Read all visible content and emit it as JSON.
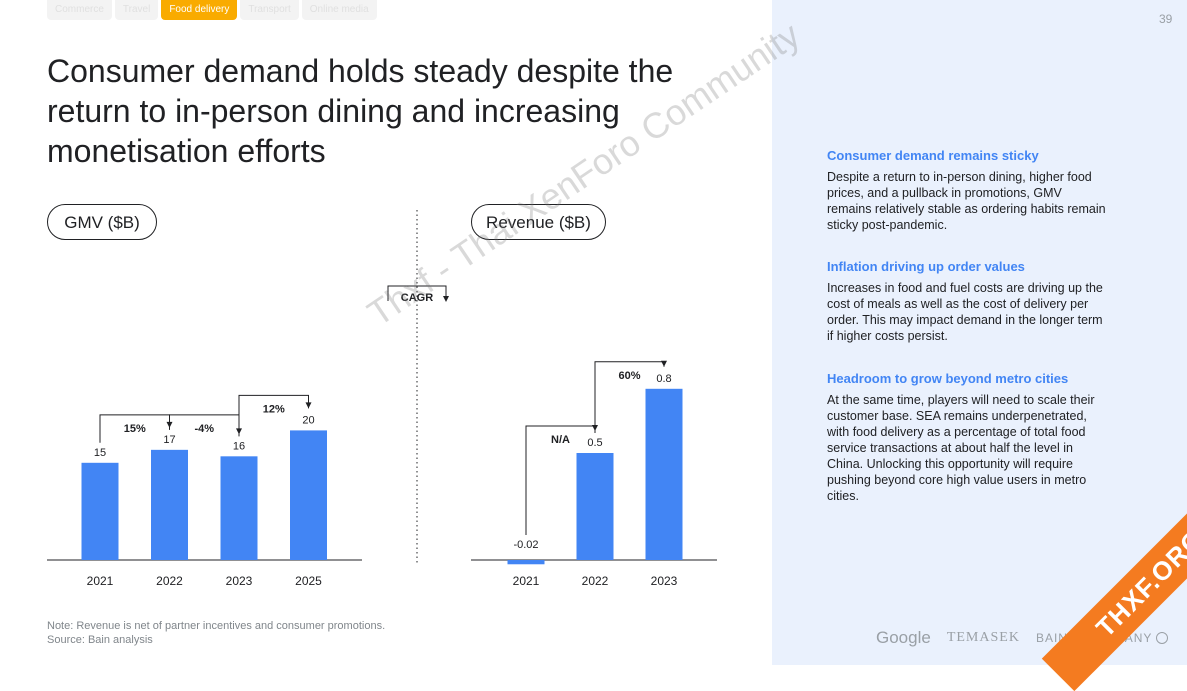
{
  "tabs": [
    {
      "label": "Commerce",
      "active": false
    },
    {
      "label": "Travel",
      "active": false
    },
    {
      "label": "Food delivery",
      "active": true
    },
    {
      "label": "Transport",
      "active": false
    },
    {
      "label": "Online media",
      "active": false
    }
  ],
  "page_number": "39",
  "title": "Consumer demand holds steady despite the return to in-person dining and increasing monetisation efforts",
  "cagr_label": "CAGR",
  "colors": {
    "bar": "#4285f4",
    "accent": "#f9ab00",
    "panel": "#eaf1fd",
    "heading": "#4285f4"
  },
  "chart_data": [
    {
      "type": "bar",
      "title": "GMV ($B)",
      "categories": [
        "2021",
        "2022",
        "2023",
        "2025"
      ],
      "values": [
        15,
        17,
        16,
        20
      ],
      "value_labels": [
        "15",
        "17",
        "16",
        "20"
      ],
      "growth_annotations": [
        {
          "from": "2021",
          "to": "2022",
          "label": "15%"
        },
        {
          "from": "2022",
          "to": "2023",
          "label": "-4%"
        },
        {
          "from": "2023",
          "to": "2025",
          "label": "12%"
        }
      ],
      "ylim": [
        0,
        25
      ]
    },
    {
      "type": "bar",
      "title": "Revenue ($B)",
      "categories": [
        "2021",
        "2022",
        "2023"
      ],
      "values": [
        -0.02,
        0.5,
        0.8
      ],
      "value_labels": [
        "-0.02",
        "0.5",
        "0.8"
      ],
      "growth_annotations": [
        {
          "from": "2021",
          "to": "2022",
          "label": "N/A"
        },
        {
          "from": "2022",
          "to": "2023",
          "label": "60%"
        }
      ],
      "ylim": [
        0,
        1.0
      ]
    }
  ],
  "sidebar": [
    {
      "heading": "Consumer demand remains sticky",
      "body": "Despite a return to in-person dining, higher food prices, and a pullback in promotions, GMV remains relatively stable as ordering habits remain sticky post-pandemic."
    },
    {
      "heading": "Inflation driving up order values",
      "body": "Increases in food and fuel costs are driving up the cost of meals as well as the cost of delivery per order. This may impact demand in the longer term if higher costs persist."
    },
    {
      "heading": "Headroom to grow beyond metro cities",
      "body": "At the same time, players will need to scale their customer base. SEA remains underpenetrated, with food delivery as a percentage of total food service transactions at about half the level in China. Unlocking this opportunity will require pushing beyond core high value users in metro cities."
    }
  ],
  "footnote": {
    "note": "Note: Revenue is net of partner incentives and consumer promotions.",
    "source": "Source: Bain analysis"
  },
  "logos": {
    "google": "Google",
    "temasek": "TEMASEK",
    "bain": "BAIN & COMPANY"
  },
  "watermark": "Thxf - Thai XenForo Community",
  "badge": "THXF.ORG"
}
